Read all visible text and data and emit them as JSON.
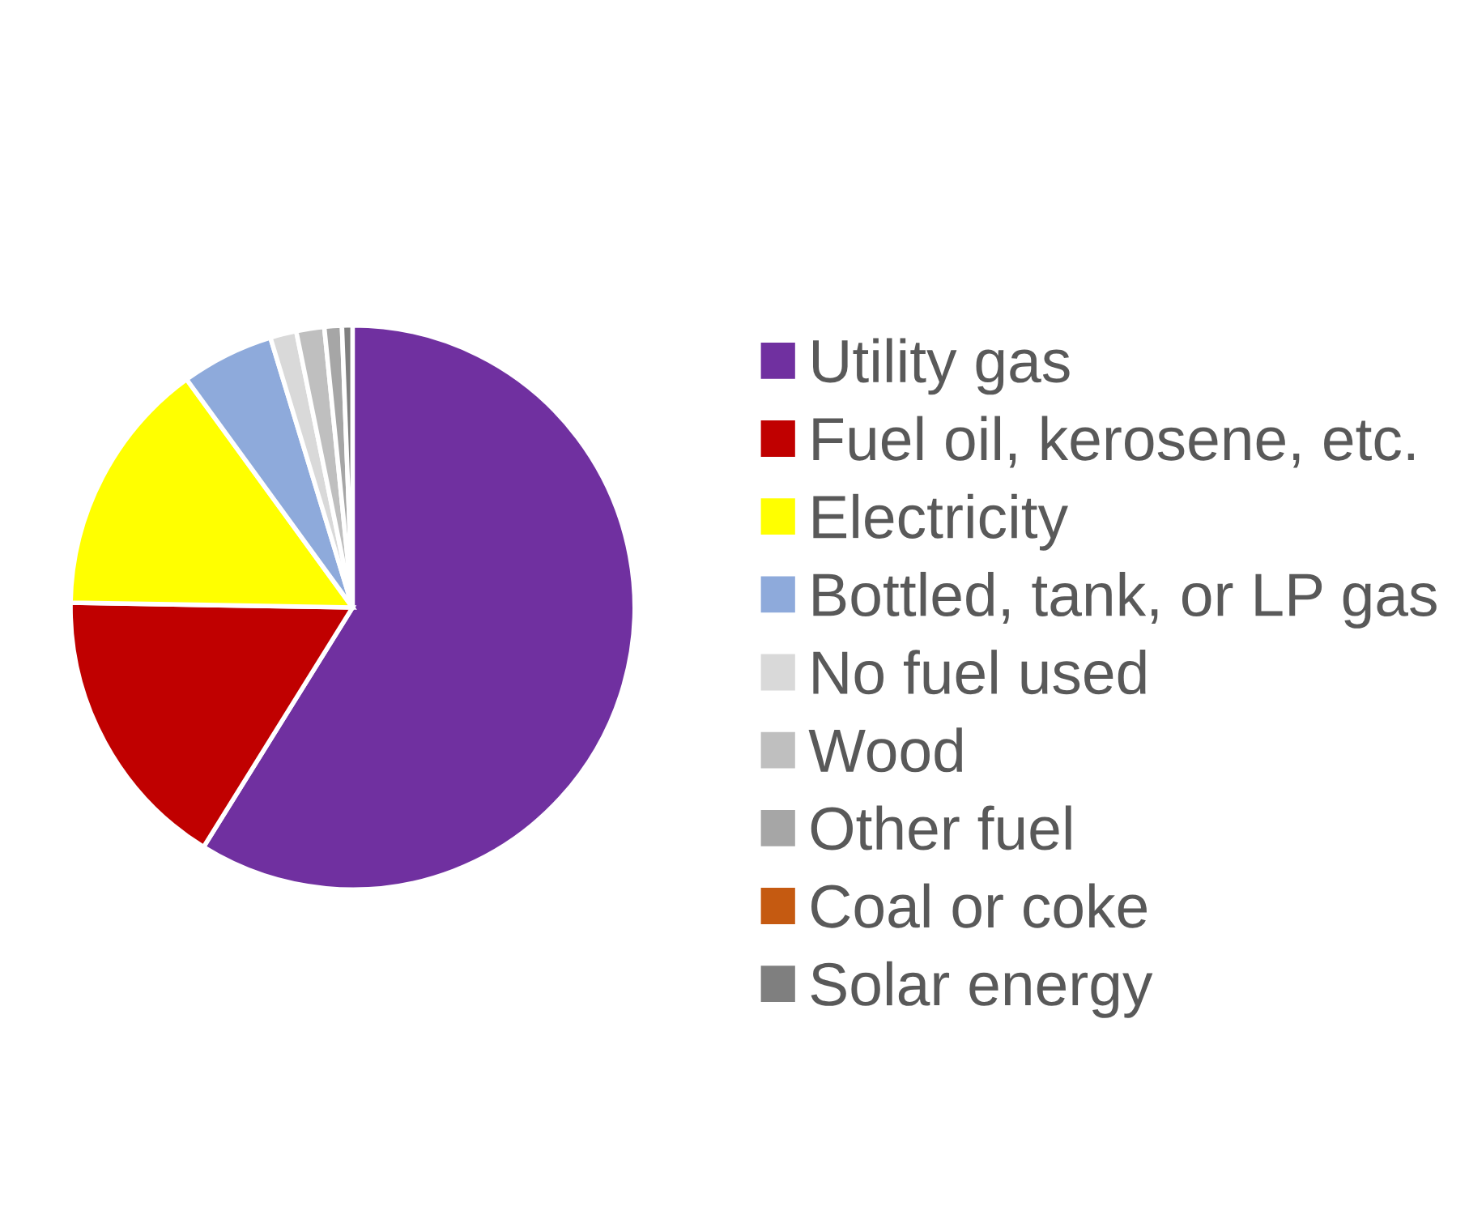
{
  "chart_data": {
    "type": "pie",
    "categories": [
      "Utility gas",
      "Fuel oil, kerosene, etc.",
      "Electricity",
      "Bottled, tank, or LP gas",
      "No fuel used",
      "Wood",
      "Other fuel",
      "Coal or coke",
      "Solar energy"
    ],
    "values": [
      58.8,
      16.4,
      14.7,
      5.3,
      1.5,
      1.6,
      1.0,
      null,
      0.6
    ],
    "colors": [
      "#7030a0",
      "#c00000",
      "#ffff00",
      "#8eaadb",
      "#d9d9d9",
      "#bfbfbf",
      "#a6a6a6",
      "#c55a11",
      "#7f7f7f"
    ],
    "legend": "right"
  }
}
